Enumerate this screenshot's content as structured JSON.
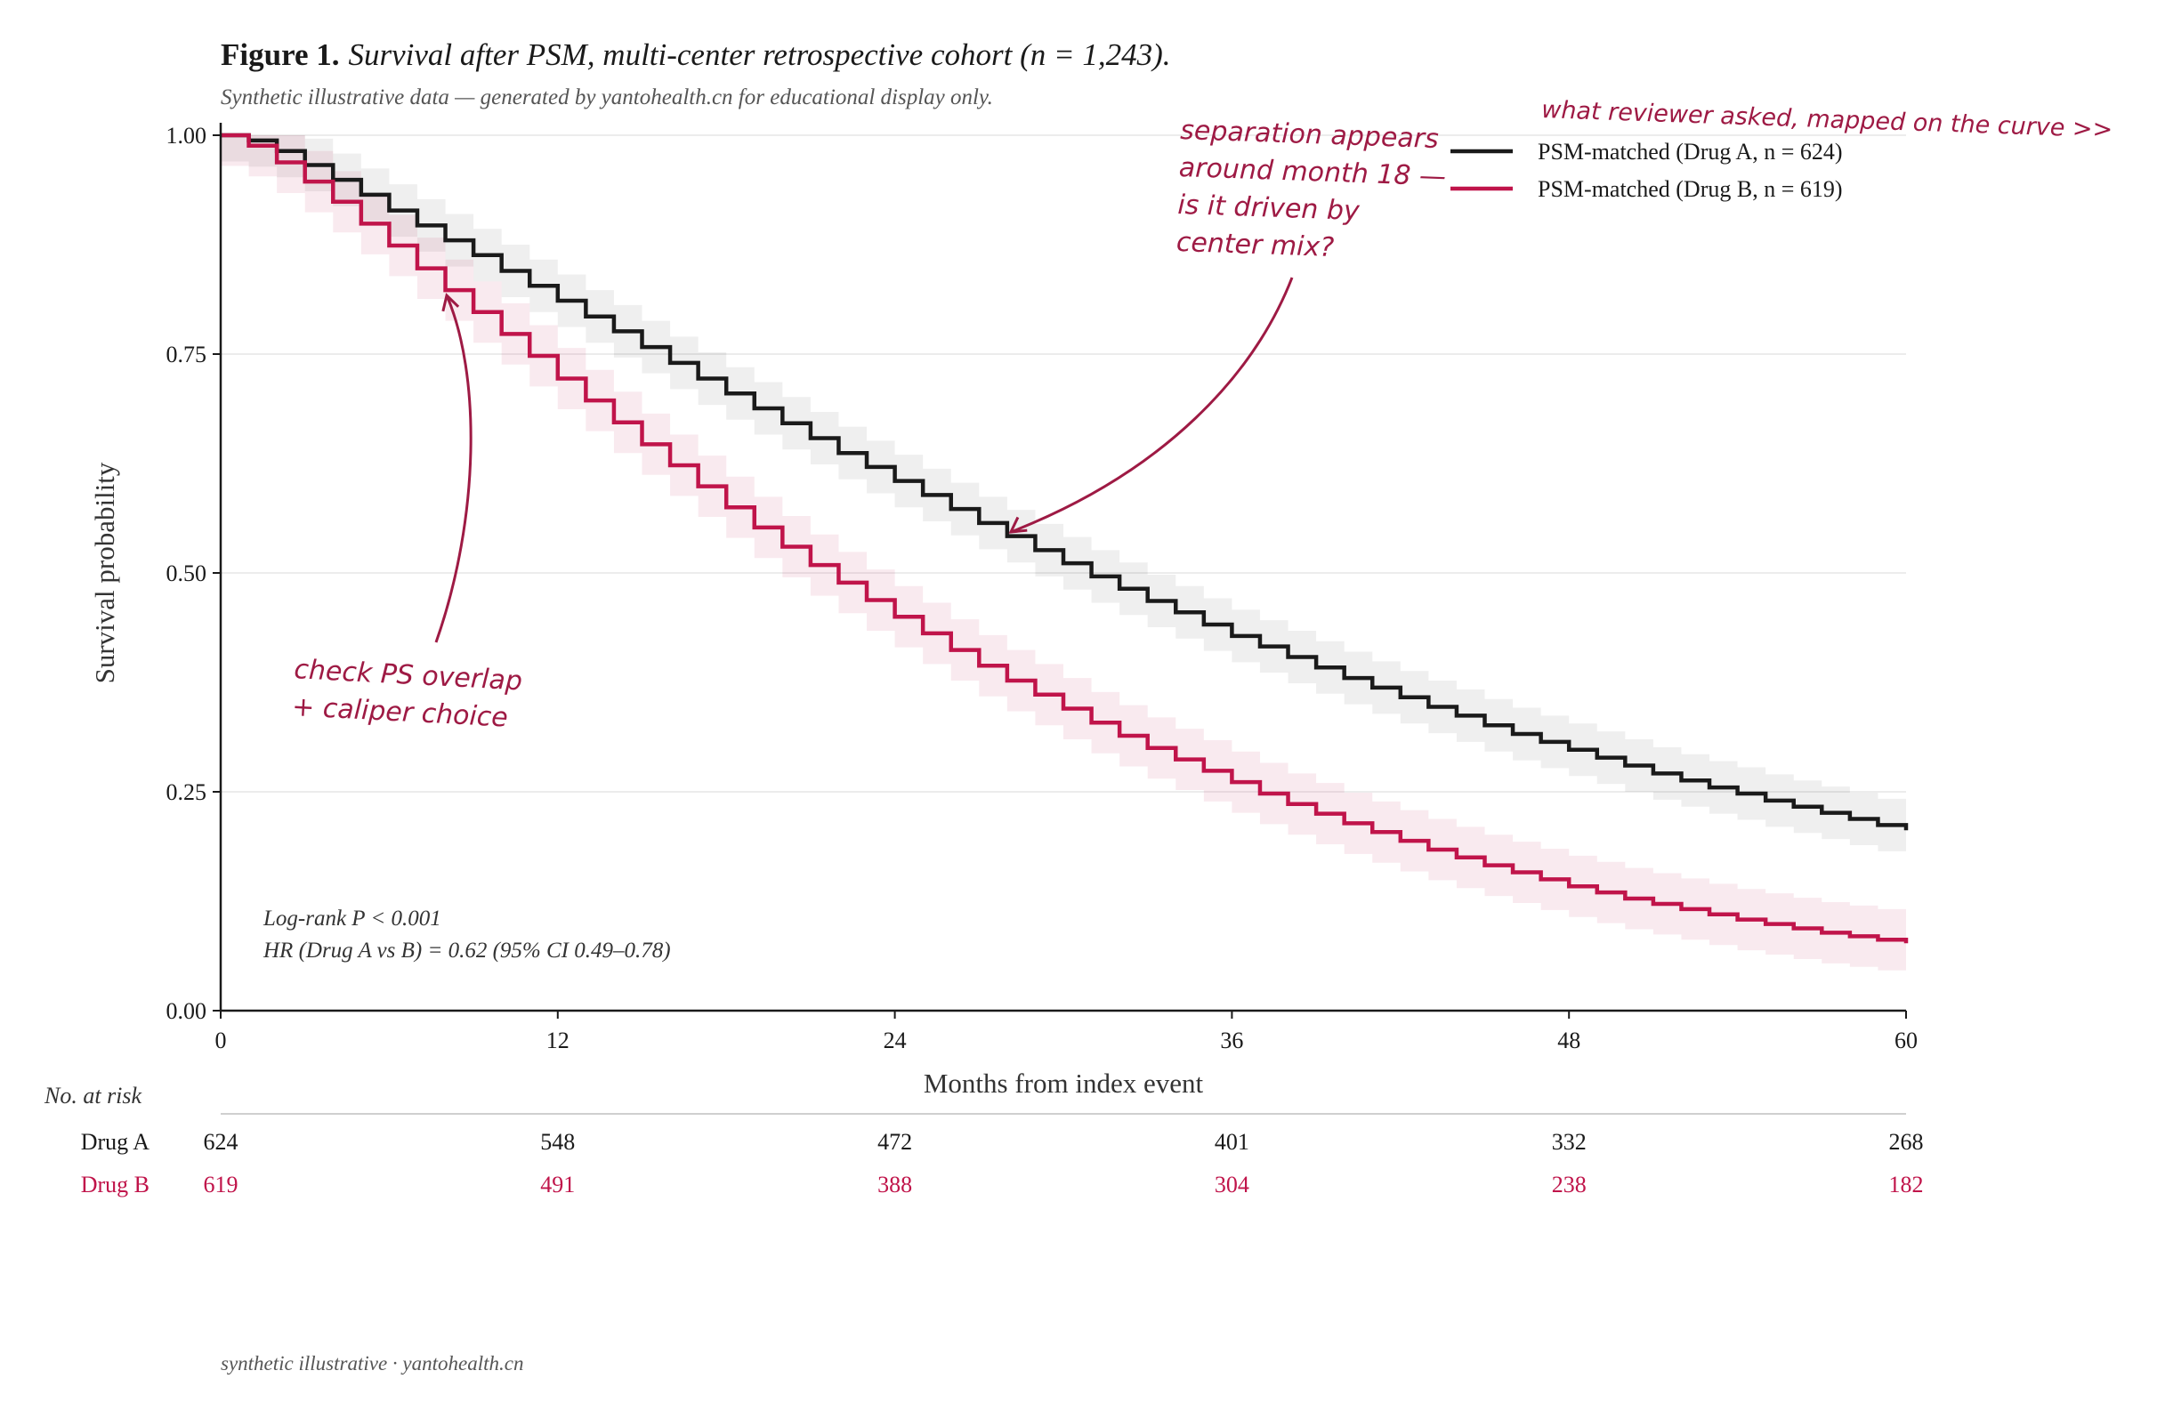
{
  "figure": {
    "label": "Figure 1.",
    "title": "Survival after PSM, multi-center retrospective cohort (n = 1,243).",
    "subtitle": "Synthetic illustrative data — generated by yantohealth.cn for educational display only.",
    "footer": "synthetic illustrative · yantohealth.cn"
  },
  "colors": {
    "drugA": "#1a1a1a",
    "drugB": "#c0144a",
    "annotation": "#9e1a44",
    "grid": "#e6e6e6"
  },
  "chart_data": {
    "type": "line",
    "step": true,
    "xlabel": "Months from index event",
    "ylabel": "Survival probability",
    "xlim": [
      0,
      60
    ],
    "ylim": [
      0,
      1
    ],
    "xticks": [
      0,
      12,
      24,
      36,
      48,
      60
    ],
    "yticks": [
      0.0,
      0.25,
      0.5,
      0.75,
      1.0
    ],
    "xtick_labels": [
      "0",
      "12",
      "24",
      "36",
      "48",
      "60"
    ],
    "ytick_labels": [
      "0.00",
      "0.25",
      "0.50",
      "0.75",
      "1.00"
    ],
    "grid": "horizontal",
    "legend_position": "top-right",
    "series": [
      {
        "name": "PSM-matched (Drug A, n = 624)",
        "color": "#1a1a1a",
        "x": [
          0,
          1,
          2,
          3,
          4,
          5,
          6,
          7,
          8,
          9,
          10,
          11,
          12,
          13,
          14,
          15,
          16,
          17,
          18,
          19,
          20,
          21,
          22,
          23,
          24,
          25,
          26,
          27,
          28,
          29,
          30,
          31,
          32,
          33,
          34,
          35,
          36,
          37,
          38,
          39,
          40,
          41,
          42,
          43,
          44,
          45,
          46,
          47,
          48,
          49,
          50,
          51,
          52,
          53,
          54,
          55,
          56,
          57,
          58,
          59,
          60
        ],
        "y": [
          1.0,
          0.994,
          0.982,
          0.966,
          0.949,
          0.932,
          0.914,
          0.897,
          0.88,
          0.863,
          0.845,
          0.828,
          0.811,
          0.793,
          0.776,
          0.758,
          0.74,
          0.722,
          0.705,
          0.688,
          0.671,
          0.654,
          0.637,
          0.621,
          0.605,
          0.589,
          0.573,
          0.557,
          0.542,
          0.526,
          0.511,
          0.496,
          0.482,
          0.468,
          0.455,
          0.441,
          0.428,
          0.416,
          0.404,
          0.392,
          0.38,
          0.369,
          0.358,
          0.347,
          0.337,
          0.326,
          0.316,
          0.307,
          0.298,
          0.289,
          0.28,
          0.271,
          0.263,
          0.255,
          0.248,
          0.24,
          0.233,
          0.226,
          0.219,
          0.212,
          0.206
        ],
        "ci_halfwidth": 0.03
      },
      {
        "name": "PSM-matched (Drug B, n = 619)",
        "color": "#c0144a",
        "x": [
          0,
          1,
          2,
          3,
          4,
          5,
          6,
          7,
          8,
          9,
          10,
          11,
          12,
          13,
          14,
          15,
          16,
          17,
          18,
          19,
          20,
          21,
          22,
          23,
          24,
          25,
          26,
          27,
          28,
          29,
          30,
          31,
          32,
          33,
          34,
          35,
          36,
          37,
          38,
          39,
          40,
          41,
          42,
          43,
          44,
          45,
          46,
          47,
          48,
          49,
          50,
          51,
          52,
          53,
          54,
          55,
          56,
          57,
          58,
          59,
          60
        ],
        "y": [
          1.0,
          0.988,
          0.969,
          0.947,
          0.924,
          0.899,
          0.874,
          0.848,
          0.823,
          0.798,
          0.773,
          0.748,
          0.722,
          0.697,
          0.672,
          0.647,
          0.623,
          0.599,
          0.575,
          0.552,
          0.53,
          0.509,
          0.489,
          0.469,
          0.45,
          0.431,
          0.412,
          0.394,
          0.377,
          0.361,
          0.345,
          0.329,
          0.314,
          0.3,
          0.287,
          0.274,
          0.261,
          0.248,
          0.236,
          0.225,
          0.214,
          0.204,
          0.194,
          0.184,
          0.175,
          0.166,
          0.158,
          0.15,
          0.142,
          0.135,
          0.128,
          0.122,
          0.116,
          0.11,
          0.104,
          0.099,
          0.094,
          0.089,
          0.085,
          0.081,
          0.077
        ],
        "ci_halfwidth": 0.035
      }
    ],
    "stats": [
      "Log-rank P < 0.001",
      "HR (Drug A vs B) = 0.62 (95% CI 0.49–0.78)"
    ],
    "risk_table": {
      "header": "No. at risk",
      "timepoints": [
        0,
        12,
        24,
        36,
        48,
        60
      ],
      "rows": [
        {
          "label": "Drug A",
          "values": [
            "624",
            "548",
            "472",
            "401",
            "332",
            "268"
          ],
          "color": "#1a1a1a"
        },
        {
          "label": "Drug B",
          "values": [
            "619",
            "491",
            "388",
            "304",
            "238",
            "182"
          ],
          "color": "#c0144a"
        }
      ]
    },
    "annotations": [
      {
        "lines": [
          "separation appears",
          "around month 18 —",
          "is it driven by",
          "center mix?"
        ],
        "points_to_x": 28
      },
      {
        "lines": [
          "check PS overlap",
          "+ caliper choice"
        ],
        "points_to_x": 8
      },
      {
        "lines": [
          "what reviewer asked, mapped on the curve  >>"
        ]
      }
    ]
  }
}
